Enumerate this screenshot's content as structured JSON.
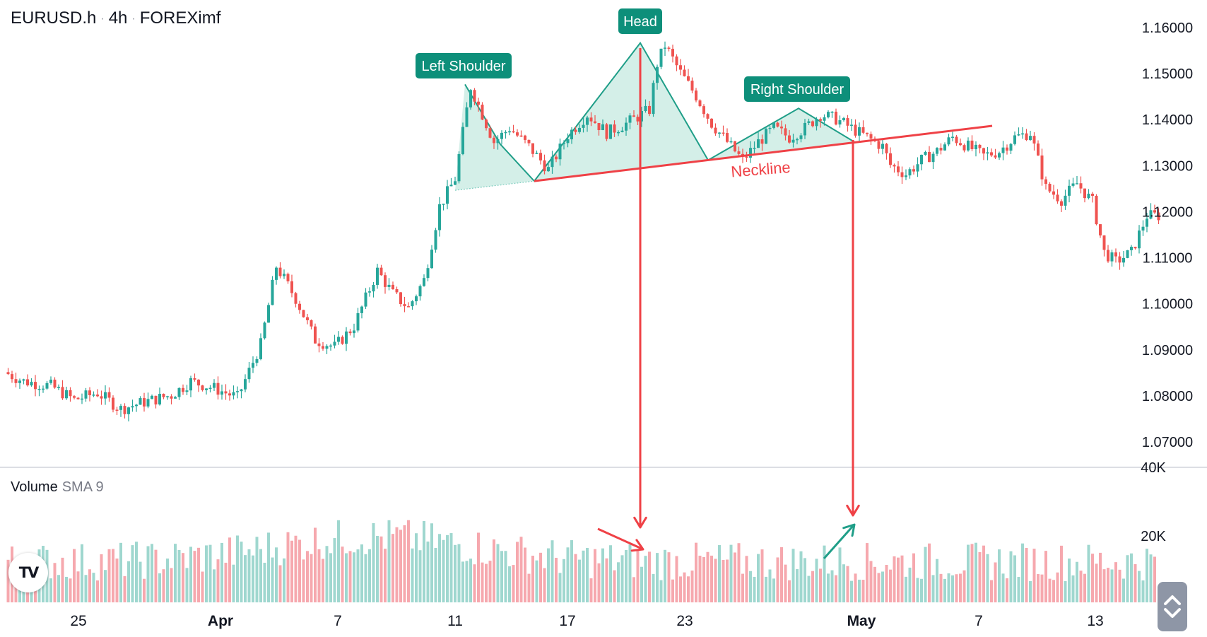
{
  "header": {
    "symbol": "EURUSD.h",
    "interval": "4h",
    "broker": "FOREXimf"
  },
  "volume_panel": {
    "title": "Volume",
    "indicator": "SMA 9",
    "ticks": [
      "40K",
      "20K"
    ]
  },
  "logo": {
    "text": "TV"
  },
  "colors": {
    "up": "#26a69a",
    "down": "#ef5350",
    "up_volume": "#9fd7cf",
    "down_volume": "#f6a8ae",
    "pattern_fill": "#d4efe8",
    "label_bg": "#0d8f7a"
  },
  "chart_data": {
    "type": "candlestick",
    "title": "",
    "y_ticks": [
      "1.16000",
      "1.15000",
      "1.14000",
      "1.13000",
      "1.12000",
      "1.11000",
      "1.10000",
      "1.09000",
      "1.08000",
      "1.07000"
    ],
    "x_ticks": [
      "25",
      "Apr",
      "7",
      "11",
      "17",
      "23",
      "May",
      "7",
      "13"
    ],
    "ylim": [
      1.066,
      1.166
    ],
    "annotations": {
      "left_shoulder": "Left Shoulder",
      "head": "Head",
      "right_shoulder": "Right Shoulder",
      "neckline": "Neckline"
    },
    "points": {
      "left_shoulder_peak": [
        "Apr 12",
        1.1475
      ],
      "head_peak": [
        "Apr 21",
        1.1565
      ],
      "right_shoulder_peak": [
        "Apr 29",
        1.1423
      ],
      "neckline_start": [
        "Apr 15",
        1.1265
      ],
      "neckline_end": [
        "May 8",
        1.1385
      ],
      "base_start": [
        "Apr 11",
        1.1245
      ]
    },
    "path": [
      [
        0,
        1.085
      ],
      [
        5,
        1.083
      ],
      [
        12,
        1.082
      ],
      [
        18,
        1.079
      ],
      [
        24,
        1.0805
      ],
      [
        30,
        1.077
      ],
      [
        36,
        1.0785
      ],
      [
        43,
        1.08
      ],
      [
        48,
        1.083
      ],
      [
        54,
        1.0815
      ],
      [
        60,
        1.0795
      ],
      [
        66,
        1.091
      ],
      [
        70,
        1.108
      ],
      [
        75,
        1.101
      ],
      [
        80,
        1.092
      ],
      [
        85,
        1.0905
      ],
      [
        90,
        1.095
      ],
      [
        96,
        1.107
      ],
      [
        100,
        1.102
      ],
      [
        104,
        1.099
      ],
      [
        108,
        1.105
      ],
      [
        112,
        1.121
      ],
      [
        116,
        1.127
      ],
      [
        120,
        1.147
      ],
      [
        126,
        1.135
      ],
      [
        130,
        1.138
      ],
      [
        135,
        1.134
      ],
      [
        140,
        1.129
      ],
      [
        145,
        1.1365
      ],
      [
        150,
        1.141
      ],
      [
        155,
        1.137
      ],
      [
        160,
        1.139
      ],
      [
        166,
        1.142
      ],
      [
        168,
        1.152
      ],
      [
        170,
        1.156
      ],
      [
        174,
        1.15
      ],
      [
        178,
        1.145
      ],
      [
        182,
        1.139
      ],
      [
        186,
        1.135
      ],
      [
        190,
        1.131
      ],
      [
        194,
        1.135
      ],
      [
        198,
        1.138
      ],
      [
        202,
        1.136
      ],
      [
        206,
        1.138
      ],
      [
        210,
        1.141
      ],
      [
        214,
        1.14
      ],
      [
        218,
        1.138
      ],
      [
        222,
        1.136
      ],
      [
        226,
        1.134
      ],
      [
        228,
        1.13
      ],
      [
        232,
        1.128
      ],
      [
        236,
        1.131
      ],
      [
        240,
        1.133
      ],
      [
        244,
        1.136
      ],
      [
        248,
        1.134
      ],
      [
        252,
        1.132
      ],
      [
        256,
        1.133
      ],
      [
        260,
        1.136
      ],
      [
        264,
        1.137
      ],
      [
        268,
        1.125
      ],
      [
        272,
        1.1225
      ],
      [
        276,
        1.126
      ],
      [
        280,
        1.122
      ],
      [
        283,
        1.111
      ],
      [
        286,
        1.109
      ],
      [
        290,
        1.111
      ],
      [
        294,
        1.119
      ]
    ],
    "volume_values": []
  }
}
